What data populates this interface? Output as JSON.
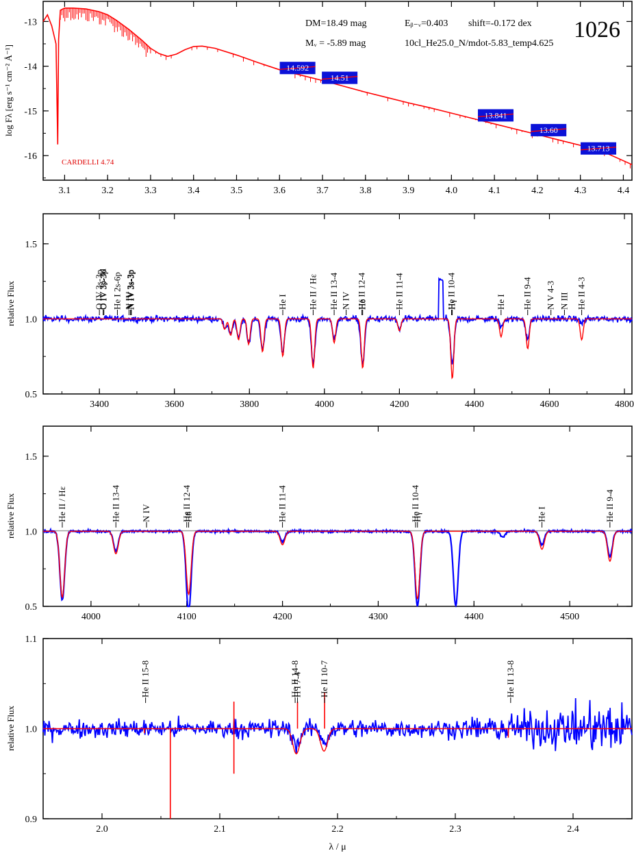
{
  "colors": {
    "model": "#ff0000",
    "observed": "#0000ff",
    "mag_box": "#0b12d8",
    "axis": "#000000",
    "reference_line": "#a0a0a0"
  },
  "header": {
    "id_label": "1026",
    "dm": "DM=18.49 mag",
    "mv": "Mᵥ =  -5.89 mag",
    "ebv": "Eᵦ₋ᵥ=0.403",
    "shift": "shift=-0.172 dex",
    "model_name": "10cl_He25.0_N/mdot-5.83_temp4.625",
    "reddening_law": "CARDELLI 4.74"
  },
  "chart_data": [
    {
      "type": "line",
      "panel": "sed",
      "ylabel": "log Fλ [erg s⁻¹ cm⁻² Å⁻¹]",
      "xlim": [
        3.05,
        4.42
      ],
      "ylim": [
        -16.55,
        -12.55
      ],
      "x_ticks": [
        "3.1",
        "3.2",
        "3.3",
        "3.4",
        "3.5",
        "3.6",
        "3.7",
        "3.8",
        "3.9",
        "4.0",
        "4.1",
        "4.2",
        "4.3",
        "4.4"
      ],
      "y_ticks": [
        "-13",
        "-14",
        "-15",
        "-16"
      ],
      "series": [
        {
          "role": "model",
          "x": [
            3.05,
            3.06,
            3.07,
            3.08,
            3.084,
            3.086,
            3.09,
            3.1,
            3.12,
            3.15,
            3.18,
            3.2,
            3.22,
            3.25,
            3.28,
            3.3,
            3.32,
            3.34,
            3.36,
            3.38,
            3.4,
            3.42,
            3.45,
            3.5,
            3.55,
            3.6,
            3.65,
            3.7,
            3.75,
            3.8,
            3.85,
            3.9,
            3.95,
            4.0,
            4.05,
            4.1,
            4.15,
            4.2,
            4.25,
            4.3,
            4.35,
            4.42
          ],
          "y": [
            -13.0,
            -12.85,
            -13.1,
            -13.5,
            -15.75,
            -13.4,
            -12.75,
            -12.7,
            -12.7,
            -12.72,
            -12.78,
            -12.85,
            -12.97,
            -13.18,
            -13.42,
            -13.6,
            -13.72,
            -13.78,
            -13.73,
            -13.63,
            -13.56,
            -13.55,
            -13.6,
            -13.75,
            -13.92,
            -14.08,
            -14.2,
            -14.32,
            -14.45,
            -14.58,
            -14.7,
            -14.82,
            -14.93,
            -15.05,
            -15.17,
            -15.29,
            -15.41,
            -15.53,
            -15.65,
            -15.77,
            -15.9,
            -16.2
          ]
        }
      ],
      "photometry": [
        {
          "x": 3.642,
          "y": -14.04,
          "label": "14.592"
        },
        {
          "x": 3.74,
          "y": -14.26,
          "label": "14.51"
        },
        {
          "x": 4.103,
          "y": -15.1,
          "label": "13.841"
        },
        {
          "x": 4.226,
          "y": -15.43,
          "label": "13.60"
        },
        {
          "x": 4.342,
          "y": -15.84,
          "label": "13.713"
        }
      ]
    },
    {
      "type": "line",
      "panel": "blue-optical",
      "ylabel": "relative Flux",
      "xlim": [
        3250,
        4820
      ],
      "ylim": [
        0.5,
        1.7
      ],
      "x_ticks": [
        "3400",
        "3600",
        "3800",
        "4000",
        "4200",
        "4400",
        "4600",
        "4800"
      ],
      "y_ticks": [
        "0.5",
        "1.0",
        "1.5"
      ],
      "continuum": 1.0,
      "series": [
        {
          "role": "model",
          "lines": [
            [
              3734,
              0.07
            ],
            [
              3750,
              0.11
            ],
            [
              3771,
              0.14
            ],
            [
              3798,
              0.17
            ],
            [
              3835,
              0.22
            ],
            [
              3889,
              0.25
            ],
            [
              3970,
              0.33
            ],
            [
              4026,
              0.16
            ],
            [
              4102,
              0.33
            ],
            [
              4200,
              0.08
            ],
            [
              4341,
              0.4
            ],
            [
              4471,
              0.12
            ],
            [
              4542,
              0.2
            ],
            [
              4686,
              0.14
            ]
          ],
          "width": 4
        },
        {
          "role": "observed",
          "lines": [
            [
              3734,
              0.06
            ],
            [
              3750,
              0.1
            ],
            [
              3771,
              0.13
            ],
            [
              3798,
              0.16
            ],
            [
              3835,
              0.2
            ],
            [
              3889,
              0.22
            ],
            [
              3970,
              0.3
            ],
            [
              4026,
              0.13
            ],
            [
              4102,
              0.3
            ],
            [
              4200,
              0.07
            ],
            [
              4341,
              0.3
            ],
            [
              4471,
              0.05
            ],
            [
              4542,
              0.13
            ],
            [
              4686,
              0.03
            ]
          ],
          "noise": 0.02,
          "artifacts": [
            [
              4304,
              4316,
              1.26
            ]
          ],
          "width": 5
        }
      ],
      "annotations": [
        {
          "x": 3400,
          "text": "O IV 3s-3p",
          "y": 1.0
        },
        {
          "x": 3410,
          "text": "O IV 3p-3d",
          "y": 1.0
        },
        {
          "x": 3412,
          "text": "O IV 3s-3p",
          "y": 1.0
        },
        {
          "x": 3448,
          "text": "He I 2s-6p",
          "y": 1.0
        },
        {
          "x": 3479,
          "text": "N IV",
          "y": 1.0
        },
        {
          "x": 3483,
          "text": "N IV 3s-3p",
          "y": 1.0
        },
        {
          "x": 3485,
          "text": "N IV 3s-3p",
          "y": 1.0
        },
        {
          "x": 3485,
          "text": "N IV 3s-3p",
          "y": 1.0
        },
        {
          "x": 3889,
          "text": "He I",
          "y": 1.0
        },
        {
          "x": 3970,
          "text": "He II / Hε",
          "y": 1.0
        },
        {
          "x": 4026,
          "text": "He II 13-4",
          "y": 1.0
        },
        {
          "x": 4058,
          "text": "N IV",
          "y": 1.0
        },
        {
          "x": 4100,
          "text": "He II 12-4",
          "y": 1.0
        },
        {
          "x": 4102,
          "text": "Hδ",
          "y": 1.0
        },
        {
          "x": 4200,
          "text": "He II 11-4",
          "y": 1.0
        },
        {
          "x": 4339,
          "text": "He II 10-4",
          "y": 1.0
        },
        {
          "x": 4341,
          "text": "Hγ",
          "y": 1.0
        },
        {
          "x": 4471,
          "text": "He I",
          "y": 1.0
        },
        {
          "x": 4542,
          "text": "He II 9-4",
          "y": 1.0
        },
        {
          "x": 4604,
          "text": "N V 4-3",
          "y": 1.0
        },
        {
          "x": 4640,
          "text": "N III",
          "y": 1.0
        },
        {
          "x": 4686,
          "text": "He II 4-3",
          "y": 1.0
        }
      ]
    },
    {
      "type": "line",
      "panel": "high-resolution",
      "ylabel": "relative Flux",
      "xlim": [
        3950,
        4565
      ],
      "ylim": [
        0.5,
        1.7
      ],
      "x_ticks": [
        "4000",
        "4100",
        "4200",
        "4300",
        "4400",
        "4500"
      ],
      "y_ticks": [
        "0.5",
        "1.0",
        "1.5"
      ],
      "continuum": 1.0,
      "series": [
        {
          "role": "model",
          "lines": [
            [
              3970,
              0.44
            ],
            [
              4026,
              0.15
            ],
            [
              4102,
              0.42
            ],
            [
              4200,
              0.09
            ],
            [
              4341,
              0.45
            ],
            [
              4471,
              0.12
            ],
            [
              4542,
              0.2
            ]
          ],
          "width": 2.5
        },
        {
          "role": "observed",
          "lines": [
            [
              3970,
              0.46
            ],
            [
              4026,
              0.13
            ],
            [
              4102,
              0.55
            ],
            [
              4200,
              0.07
            ],
            [
              4341,
              0.5
            ],
            [
              4381,
              0.5
            ],
            [
              4430,
              0.04
            ],
            [
              4471,
              0.09
            ],
            [
              4542,
              0.17
            ]
          ],
          "noise": 0.007,
          "width": 2.5
        }
      ],
      "annotations": [
        {
          "x": 3970,
          "text": "He II / Hε",
          "y": 1.0
        },
        {
          "x": 4026,
          "text": "He II 13-4",
          "y": 1.0
        },
        {
          "x": 4058,
          "text": "N IV",
          "y": 1.0
        },
        {
          "x": 4100,
          "text": "He II 12-4",
          "y": 1.0
        },
        {
          "x": 4102,
          "text": "Hδ",
          "y": 1.0
        },
        {
          "x": 4200,
          "text": "He II 11-4",
          "y": 1.0
        },
        {
          "x": 4339,
          "text": "He II 10-4",
          "y": 1.0
        },
        {
          "x": 4341,
          "text": "Hγ",
          "y": 1.0
        },
        {
          "x": 4471,
          "text": "He I",
          "y": 1.0
        },
        {
          "x": 4542,
          "text": "He II 9-4",
          "y": 1.0
        }
      ]
    },
    {
      "type": "line",
      "panel": "near-infrared",
      "ylabel": "relative Flux",
      "xlabel": "λ / μ",
      "xlim": [
        1.95,
        2.45
      ],
      "ylim": [
        0.9,
        1.1
      ],
      "x_ticks": [
        "2.0",
        "2.1",
        "2.2",
        "2.3",
        "2.4"
      ],
      "y_ticks": [
        "0.9",
        "1.0",
        "1.1"
      ],
      "continuum": 1.0,
      "series": [
        {
          "role": "model",
          "lines": [
            [
              2.165,
              0.028
            ],
            [
              2.1885,
              0.025
            ]
          ],
          "spikes": [
            [
              2.058,
              -0.12
            ],
            [
              2.112,
              -0.05
            ],
            [
              2.112,
              0.03
            ],
            [
              2.166,
              0.03
            ],
            [
              2.189,
              0.04
            ],
            [
              2.036,
              -0.005
            ],
            [
              2.345,
              -0.01
            ]
          ],
          "width": 0.003
        },
        {
          "role": "observed",
          "lines": [
            [
              2.1655,
              0.018
            ],
            [
              2.189,
              0.015
            ]
          ],
          "noise_left": 0.01,
          "noise_right": 0.03,
          "width": 0.003
        }
      ],
      "annotations": [
        {
          "x": 2.037,
          "text": "He II 15-8",
          "y": 1.0
        },
        {
          "x": 2.164,
          "text": "He II 14-8",
          "y": 1.0
        },
        {
          "x": 2.166,
          "text": "H I 7-4",
          "y": 1.0
        },
        {
          "x": 2.189,
          "text": "He II 10-7",
          "y": 1.0
        },
        {
          "x": 2.347,
          "text": "He II 13-8",
          "y": 1.0
        }
      ]
    }
  ]
}
